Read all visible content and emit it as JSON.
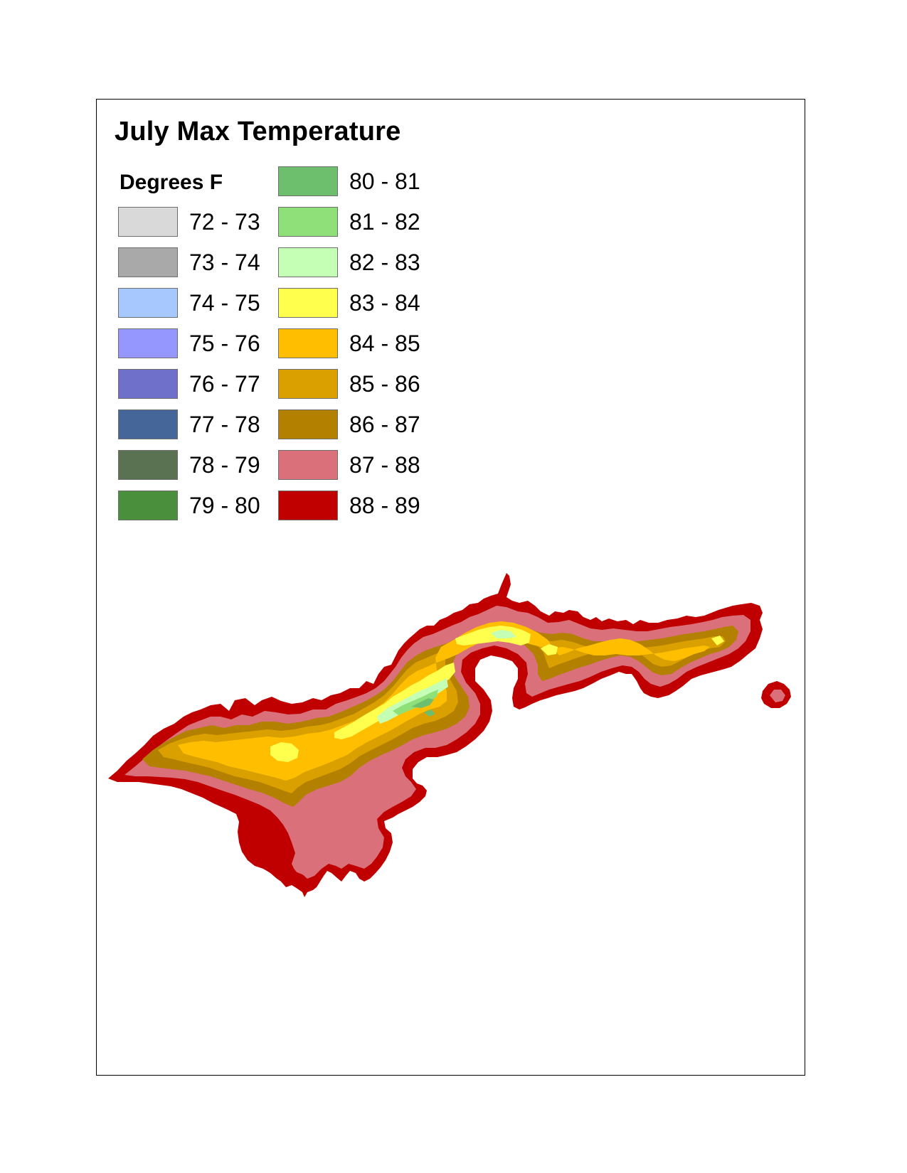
{
  "map": {
    "title": "July Max Temperature",
    "legend_title": "Degrees F",
    "legend": [
      {
        "label": "72 - 73",
        "color": "#d9d9d9"
      },
      {
        "label": "73 - 74",
        "color": "#a9a9a9"
      },
      {
        "label": "74 - 75",
        "color": "#a6c8ff"
      },
      {
        "label": "75 - 76",
        "color": "#9696ff"
      },
      {
        "label": "76 - 77",
        "color": "#6f70c9"
      },
      {
        "label": "77 - 78",
        "color": "#456699"
      },
      {
        "label": "78 - 79",
        "color": "#5a7252"
      },
      {
        "label": "79 - 80",
        "color": "#4a8f3c"
      },
      {
        "label": "80 - 81",
        "color": "#6dbf6d"
      },
      {
        "label": "81 - 82",
        "color": "#90e07a"
      },
      {
        "label": "82 - 83",
        "color": "#c4ffb5"
      },
      {
        "label": "83 - 84",
        "color": "#ffff4d"
      },
      {
        "label": "84 - 85",
        "color": "#ffbf00"
      },
      {
        "label": "85 - 86",
        "color": "#d9a000"
      },
      {
        "label": "86 - 87",
        "color": "#b38000"
      },
      {
        "label": "87 - 88",
        "color": "#d9707a"
      },
      {
        "label": "88 - 89",
        "color": "#c00000"
      }
    ]
  }
}
